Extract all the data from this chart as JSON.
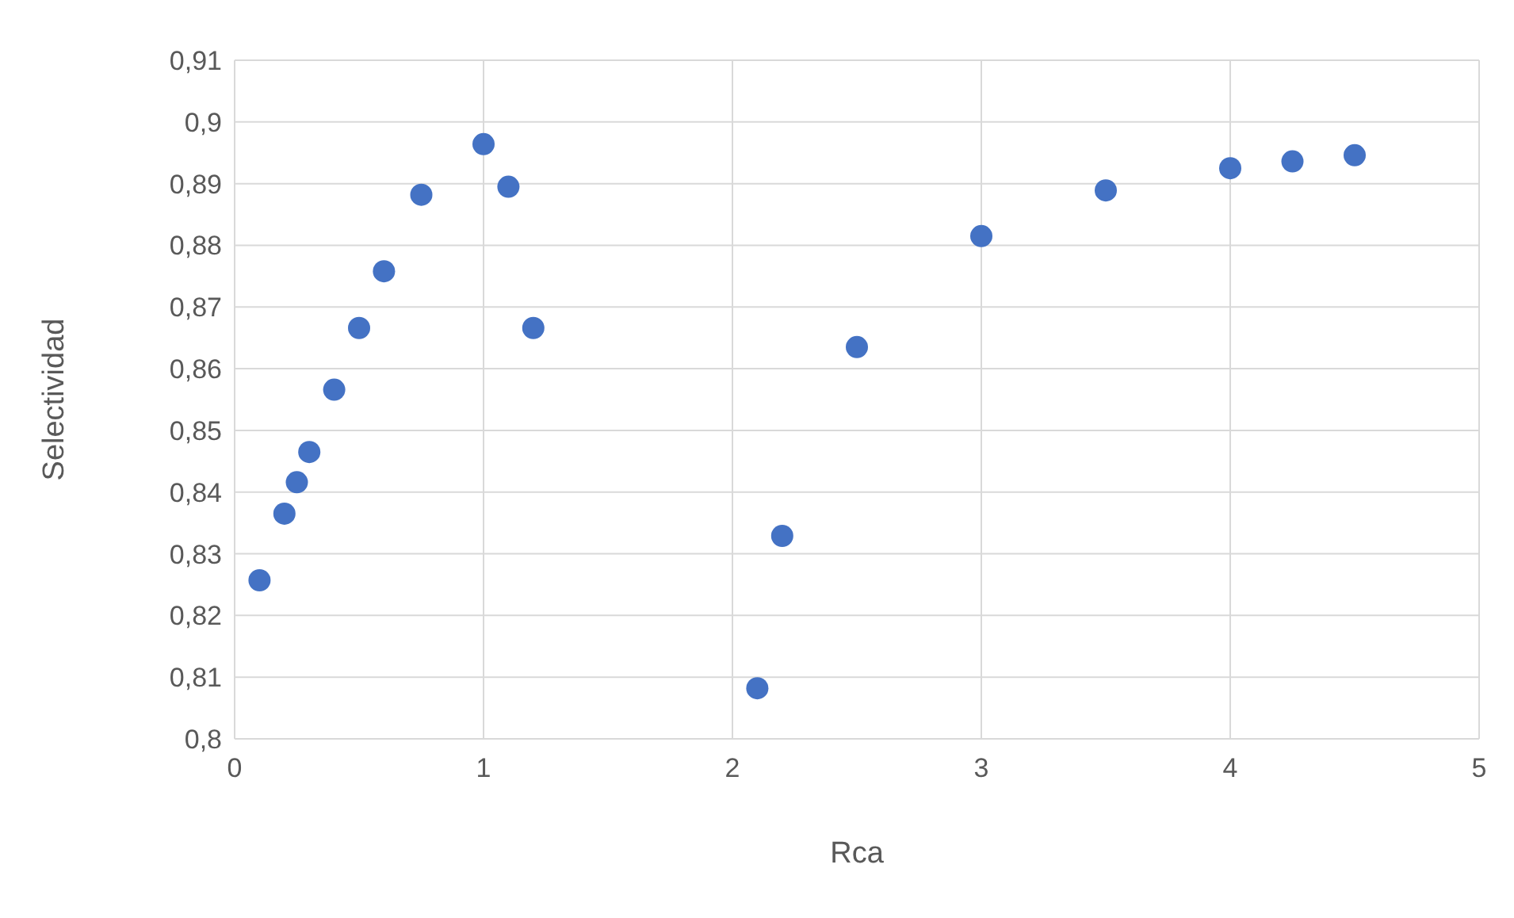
{
  "chart_data": {
    "type": "scatter",
    "xlabel": "Rca",
    "ylabel": "Selectividad",
    "x": [
      0.1,
      0.2,
      0.25,
      0.3,
      0.4,
      0.5,
      0.6,
      0.75,
      1.0,
      1.1,
      1.2,
      2.1,
      2.2,
      2.5,
      3.0,
      3.5,
      4.0,
      4.25,
      4.5
    ],
    "series": [
      {
        "color": "#4472c4",
        "values": [
          0.8257,
          0.8365,
          0.8416,
          0.8465,
          0.8566,
          0.8666,
          0.8758,
          0.8882,
          0.8964,
          0.8895,
          0.8666,
          0.8082,
          0.8329,
          0.8635,
          0.8815,
          0.8889,
          0.8925,
          0.8936,
          0.8946
        ]
      }
    ],
    "xlim": [
      0,
      5
    ],
    "xticks": [
      0,
      1,
      2,
      3,
      4,
      5
    ],
    "ylim": [
      0.8,
      0.91
    ],
    "yticks": [
      {
        "value": 0.8,
        "label": "0,8"
      },
      {
        "value": 0.81,
        "label": "0,81"
      },
      {
        "value": 0.82,
        "label": "0,82"
      },
      {
        "value": 0.83,
        "label": "0,83"
      },
      {
        "value": 0.84,
        "label": "0,84"
      },
      {
        "value": 0.85,
        "label": "0,85"
      },
      {
        "value": 0.86,
        "label": "0,86"
      },
      {
        "value": 0.87,
        "label": "0,87"
      },
      {
        "value": 0.88,
        "label": "0,88"
      },
      {
        "value": 0.89,
        "label": "0,89"
      },
      {
        "value": 0.9,
        "label": "0,9"
      },
      {
        "value": 0.91,
        "label": "0,91"
      }
    ],
    "grid": true,
    "marker": "circle"
  }
}
